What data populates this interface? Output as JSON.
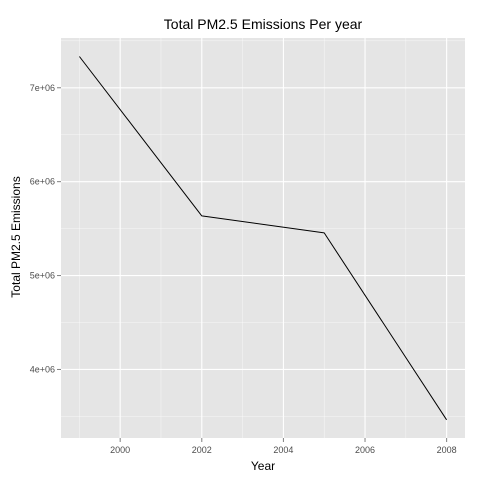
{
  "chart_data": {
    "type": "line",
    "title": "Total PM2.5 Emissions Per year",
    "xlabel": "Year",
    "ylabel": "Total PM2.5 Emissions",
    "x": [
      1999,
      2002,
      2005,
      2008
    ],
    "series": [
      {
        "values": [
          7332967,
          5635780,
          5454703,
          3464206
        ]
      }
    ],
    "xlim": [
      1998.55,
      2008.45
    ],
    "ylim": [
      3270000,
      7530000
    ],
    "x_ticks": [
      2000,
      2002,
      2004,
      2006,
      2008
    ],
    "x_tick_labels": [
      "2000",
      "2002",
      "2004",
      "2006",
      "2008"
    ],
    "y_ticks": [
      4000000,
      5000000,
      6000000,
      7000000
    ],
    "y_tick_labels": [
      "4e+06",
      "5e+06",
      "6e+06",
      "7e+06"
    ],
    "grid": true,
    "colors": {
      "panel_background": "#e5e5e5",
      "grid_line": "#ffffff",
      "series_line": "#000000"
    }
  }
}
